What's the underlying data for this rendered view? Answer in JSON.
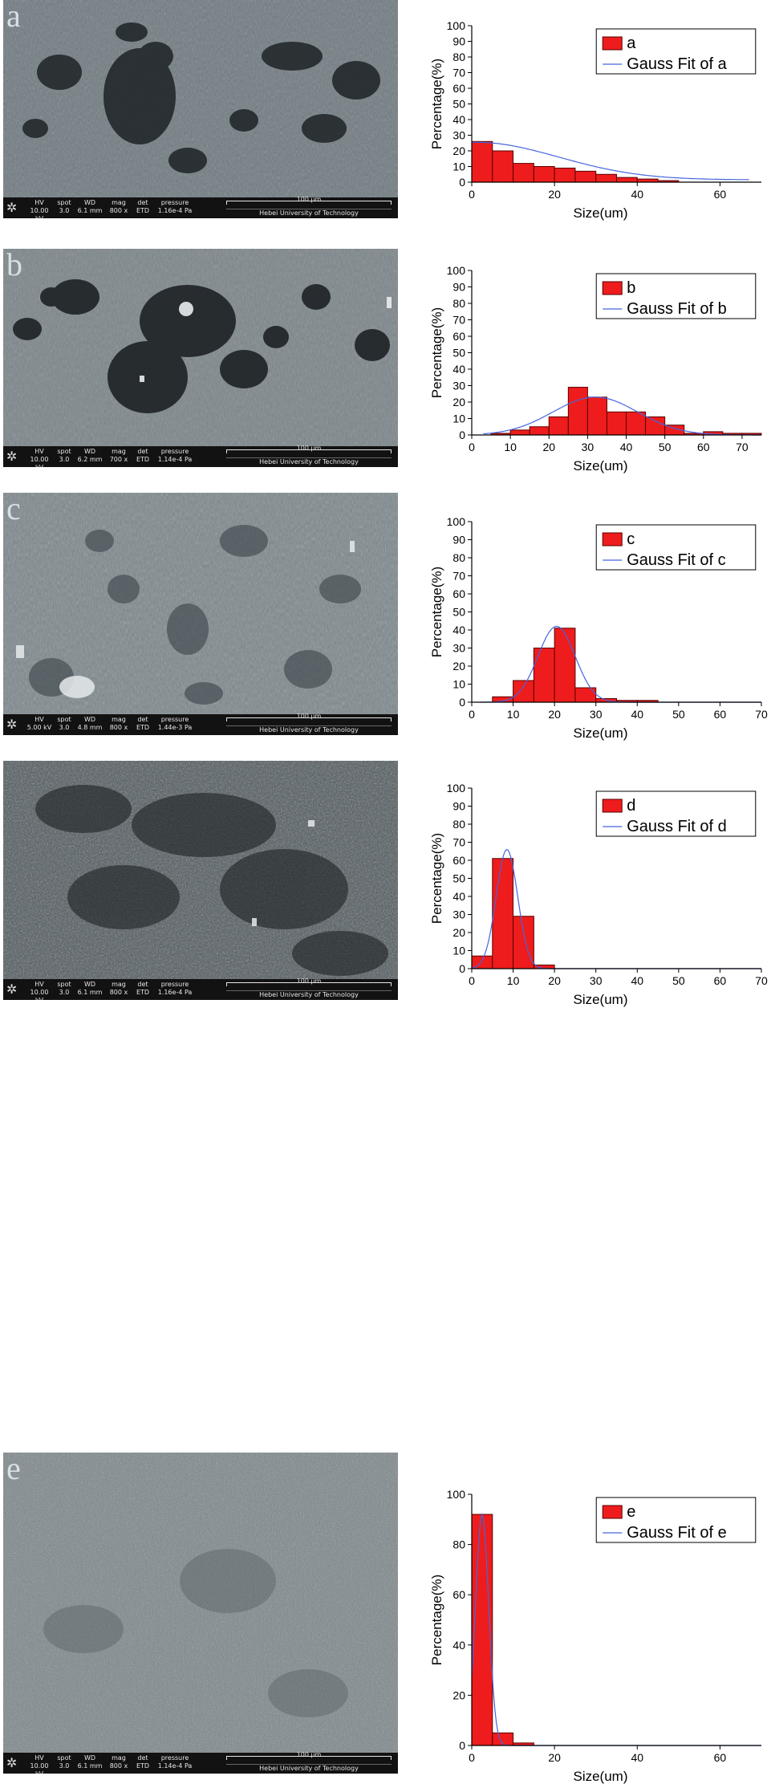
{
  "panels": [
    {
      "letter": "a",
      "sem": {
        "hv": "10.00 kV",
        "spot": "3.0",
        "wd": "6.1 mm",
        "mag": "800 x",
        "det": "ETD",
        "pressure": "1.16e-4 Pa",
        "scale": "100 μm",
        "institution": "Hebei University of Technology"
      }
    },
    {
      "letter": "b",
      "sem": {
        "hv": "10.00 kV",
        "spot": "3.0",
        "wd": "6.2 mm",
        "mag": "700 x",
        "det": "ETD",
        "pressure": "1.14e-4 Pa",
        "scale": "100 μm",
        "institution": "Hebei University of Technology"
      }
    },
    {
      "letter": "c",
      "sem": {
        "hv": "5.00 kV",
        "spot": "3.0",
        "wd": "4.8 mm",
        "mag": "800 x",
        "det": "ETD",
        "pressure": "1.44e-3 Pa",
        "scale": "100 μm",
        "institution": "Hebei University of Technology"
      }
    },
    {
      "letter": "",
      "sem": {
        "hv": "10.00 kV",
        "spot": "3.0",
        "wd": "6.1 mm",
        "mag": "800 x",
        "det": "ETD",
        "pressure": "1.16e-4 Pa",
        "scale": "100 μm",
        "institution": "Hebei University of Technology"
      }
    },
    {
      "letter": "e",
      "sem": {
        "hv": "10.00 kV",
        "spot": "3.0",
        "wd": "6.1 mm",
        "mag": "800 x",
        "det": "ETD",
        "pressure": "1.14e-4 Pa",
        "scale": "100 μm",
        "institution": "Hebei University of Technology"
      }
    }
  ],
  "sem_headers": {
    "hv": "HV",
    "spot": "spot",
    "wd": "WD",
    "mag": "mag",
    "det": "det",
    "pressure": "pressure"
  },
  "colors": {
    "bar_fill": "#ee1c1c",
    "bar_stroke": "#5a0000",
    "fit_line": "#4466dd",
    "axis": "#000000"
  },
  "chart_data": [
    {
      "type": "bar",
      "xlabel": "Size(um)",
      "ylabel": "Percentage(%)",
      "xlim": [
        0,
        70
      ],
      "ylim": [
        0,
        100
      ],
      "xticks": [
        0,
        20,
        40,
        60
      ],
      "yticks": [
        0,
        10,
        20,
        30,
        40,
        50,
        60,
        70,
        80,
        90,
        100
      ],
      "legend": [
        "a",
        "Gauss Fit of a"
      ],
      "bin_width": 5,
      "x": [
        2.5,
        7.5,
        12.5,
        17.5,
        22.5,
        27.5,
        32.5,
        37.5,
        42.5,
        47.5
      ],
      "values": [
        26,
        20,
        12,
        10,
        9,
        7,
        5,
        3,
        2,
        1
      ],
      "fit": {
        "mu": 1,
        "sigma": 20,
        "amplitude": 24,
        "offset": 1.5,
        "range": [
          0,
          67
        ]
      }
    },
    {
      "type": "bar",
      "xlabel": "Size(um)",
      "ylabel": "Percentage(%)",
      "xlim": [
        0,
        75
      ],
      "ylim": [
        0,
        100
      ],
      "xticks": [
        0,
        10,
        20,
        30,
        40,
        50,
        60,
        70
      ],
      "yticks": [
        0,
        10,
        20,
        30,
        40,
        50,
        60,
        70,
        80,
        90,
        100
      ],
      "legend": [
        "b",
        "Gauss Fit of b"
      ],
      "bin_width": 5,
      "x": [
        7.5,
        12.5,
        17.5,
        22.5,
        27.5,
        32.5,
        37.5,
        42.5,
        47.5,
        52.5,
        57.5,
        62.5,
        67.5,
        72.5
      ],
      "values": [
        1,
        3,
        5,
        11,
        29,
        23,
        14,
        14,
        11,
        6,
        1,
        2,
        1,
        1
      ],
      "fit": {
        "mu": 32,
        "sigma": 11,
        "amplitude": 23,
        "offset": 0,
        "range": [
          3,
          75
        ]
      }
    },
    {
      "type": "bar",
      "xlabel": "Size(um)",
      "ylabel": "Percentage(%)",
      "xlim": [
        0,
        70
      ],
      "ylim": [
        0,
        100
      ],
      "xticks": [
        0,
        10,
        20,
        30,
        40,
        50,
        60,
        70
      ],
      "yticks": [
        0,
        10,
        20,
        30,
        40,
        50,
        60,
        70,
        80,
        90,
        100
      ],
      "legend": [
        "c",
        "Gauss Fit of c"
      ],
      "bin_width": 5,
      "x": [
        7.5,
        12.5,
        17.5,
        22.5,
        27.5,
        32.5,
        37.5,
        42.5
      ],
      "values": [
        3,
        12,
        30,
        41,
        8,
        2,
        1,
        1
      ],
      "fit": {
        "mu": 20.5,
        "sigma": 4.5,
        "amplitude": 42,
        "offset": 0,
        "range": [
          2,
          70
        ]
      }
    },
    {
      "type": "bar",
      "xlabel": "Size(um)",
      "ylabel": "Percentage(%)",
      "xlim": [
        0,
        70
      ],
      "ylim": [
        0,
        100
      ],
      "xticks": [
        0,
        10,
        20,
        30,
        40,
        50,
        60,
        70
      ],
      "yticks": [
        0,
        10,
        20,
        30,
        40,
        50,
        60,
        70,
        80,
        90,
        100
      ],
      "legend": [
        "d",
        "Gauss Fit of d"
      ],
      "bin_width": 5,
      "x": [
        2.5,
        7.5,
        12.5,
        17.5
      ],
      "values": [
        7,
        61,
        29,
        2
      ],
      "fit": {
        "mu": 8.5,
        "sigma": 2.6,
        "amplitude": 66,
        "offset": 0,
        "range": [
          0,
          70
        ]
      }
    },
    {
      "type": "bar",
      "xlabel": "Size(um)",
      "ylabel": "Percentage(%)",
      "xlim": [
        0,
        70
      ],
      "ylim": [
        0,
        100
      ],
      "xticks": [
        0,
        20,
        40,
        60
      ],
      "yticks": [
        0,
        20,
        40,
        60,
        80,
        100
      ],
      "legend": [
        "e",
        "Gauss Fit of e"
      ],
      "bin_width": 5,
      "x": [
        2.5,
        7.5,
        12.5
      ],
      "values": [
        92,
        5,
        1
      ],
      "fit": {
        "mu": 2.5,
        "sigma": 1.6,
        "amplitude": 92,
        "offset": 0,
        "range": [
          0,
          70
        ]
      }
    }
  ]
}
